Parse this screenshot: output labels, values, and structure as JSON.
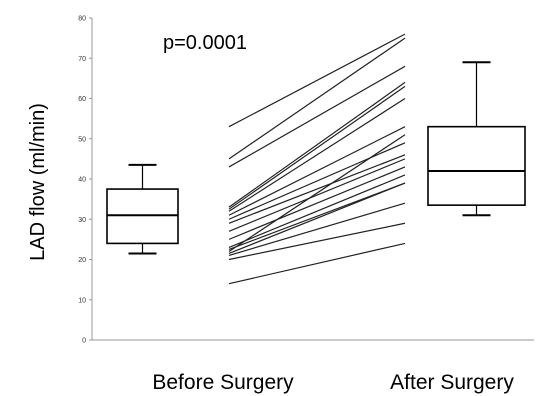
{
  "chart_data": {
    "type": "box",
    "title": "",
    "xlabel": "",
    "ylabel": "LAD flow (ml/min)",
    "ylim": [
      0,
      80
    ],
    "yticks": [
      0,
      10,
      20,
      30,
      40,
      50,
      60,
      70,
      80
    ],
    "ytick_labels": [
      "0",
      "10",
      "20",
      "30",
      "40",
      "50",
      "60",
      "70",
      "80"
    ],
    "categories": [
      "Before Surgery",
      "After Surgery"
    ],
    "annotation": "p=0.0001",
    "grid": false,
    "boxes": [
      {
        "category": "Before Surgery",
        "min": 21.5,
        "q1": 24,
        "median": 31,
        "q3": 37.5,
        "max": 43.5
      },
      {
        "category": "After Surgery",
        "min": 31,
        "q1": 33.5,
        "median": 42,
        "q3": 53,
        "max": 69
      }
    ],
    "paired": [
      {
        "before": 53,
        "after": 76
      },
      {
        "before": 45,
        "after": 75
      },
      {
        "before": 43,
        "after": 68
      },
      {
        "before": 33,
        "after": 64
      },
      {
        "before": 32.5,
        "after": 63
      },
      {
        "before": 32,
        "after": 60
      },
      {
        "before": 31,
        "after": 53
      },
      {
        "before": 30,
        "after": 49
      },
      {
        "before": 29,
        "after": 46
      },
      {
        "before": 27,
        "after": 45
      },
      {
        "before": 25,
        "after": 43
      },
      {
        "before": 23,
        "after": 41
      },
      {
        "before": 22,
        "after": 51
      },
      {
        "before": 22.5,
        "after": 39
      },
      {
        "before": 21.5,
        "after": 39
      },
      {
        "before": 21,
        "after": 34
      },
      {
        "before": 20,
        "after": 29
      },
      {
        "before": 14,
        "after": 24
      }
    ]
  }
}
